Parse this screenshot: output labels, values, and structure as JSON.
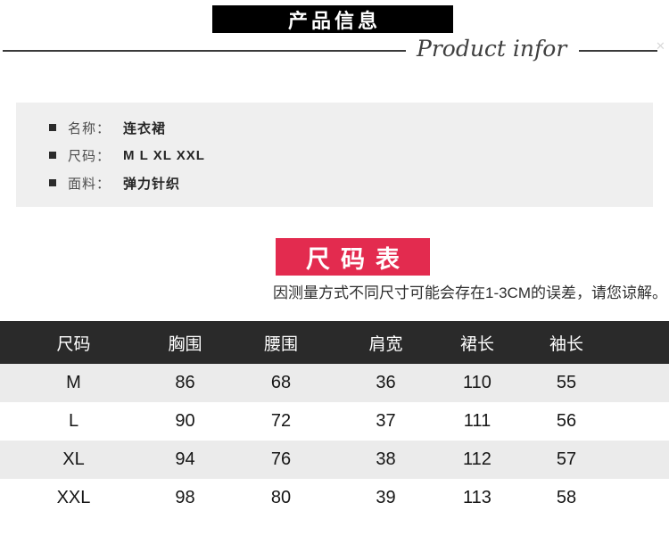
{
  "header": {
    "title_banner": "产品信息",
    "subtitle_script": "Product infor"
  },
  "product_info": {
    "items": [
      {
        "label": "名称：",
        "value": "连衣裙"
      },
      {
        "label": "尺码：",
        "value": "M L XL XXL"
      },
      {
        "label": "面料：",
        "value": "弹力针织"
      }
    ]
  },
  "size_chart": {
    "banner": "尺码表",
    "note": "因测量方式不同尺寸可能会存在1-3CM的误差，请您谅解。"
  },
  "size_table": {
    "headers": [
      "尺码",
      "胸围",
      "腰围",
      "肩宽",
      "裙长",
      "袖长"
    ],
    "rows": [
      [
        "M",
        "86",
        "68",
        "36",
        "110",
        "55"
      ],
      [
        "L",
        "90",
        "72",
        "37",
        "111",
        "56"
      ],
      [
        "XL",
        "94",
        "76",
        "38",
        "112",
        "57"
      ],
      [
        "XXL",
        "98",
        "80",
        "39",
        "113",
        "58"
      ]
    ]
  },
  "colors": {
    "banner_black": "#000000",
    "accent_red": "#e32b4f",
    "table_header_bg": "#2a2a2a",
    "row_alt_bg": "#ebebeb",
    "panel_bg": "#efefef"
  }
}
